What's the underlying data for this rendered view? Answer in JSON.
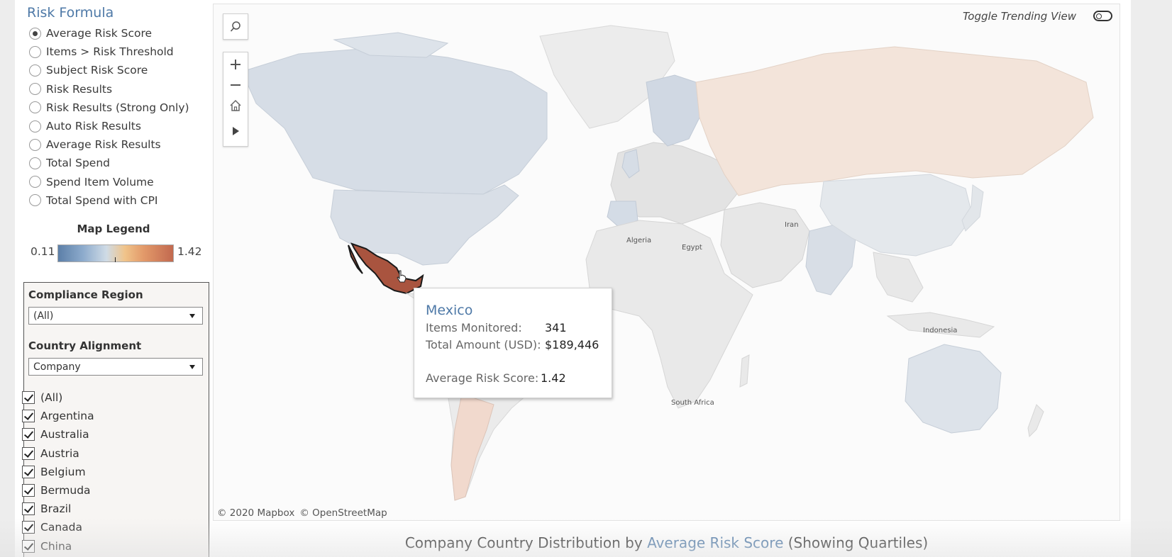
{
  "risk_formula": {
    "title": "Risk Formula",
    "selected": "Average Risk Score",
    "options": [
      {
        "label": "Average Risk Score",
        "checked": true
      },
      {
        "label": "Items > Risk Threshold",
        "checked": false
      },
      {
        "label": "Subject Risk Score",
        "checked": false
      },
      {
        "label": "Risk Results",
        "checked": false
      },
      {
        "label": "Risk Results (Strong Only)",
        "checked": false
      },
      {
        "label": "Auto Risk Results",
        "checked": false
      },
      {
        "label": "Average Risk Results",
        "checked": false
      },
      {
        "label": "Total Spend",
        "checked": false
      },
      {
        "label": "Spend Item Volume",
        "checked": false
      },
      {
        "label": "Total Spend with CPI",
        "checked": false
      }
    ]
  },
  "map_legend": {
    "title": "Map Legend",
    "min": "0.11",
    "max": "1.42",
    "colors": [
      "#5c7fa8",
      "#8eaccd",
      "#cfdbe6",
      "#f0c48a",
      "#e39a6a",
      "#c2694f"
    ]
  },
  "filters": {
    "compliance_region": {
      "label": "Compliance Region",
      "value": "(All)"
    },
    "country_alignment": {
      "label": "Country Alignment",
      "value": "Company"
    },
    "countries": [
      {
        "label": "(All)",
        "checked": true
      },
      {
        "label": "Argentina",
        "checked": true
      },
      {
        "label": "Australia",
        "checked": true
      },
      {
        "label": "Austria",
        "checked": true
      },
      {
        "label": "Belgium",
        "checked": true
      },
      {
        "label": "Bermuda",
        "checked": true
      },
      {
        "label": "Brazil",
        "checked": true
      },
      {
        "label": "Canada",
        "checked": true
      },
      {
        "label": "China",
        "checked": true
      }
    ]
  },
  "map": {
    "toggle_label": "Toggle Trending View",
    "copyright": [
      "© 2020 Mapbox",
      "© OpenStreetMap"
    ],
    "place_labels": [
      "Algeria",
      "Egypt",
      "Iran",
      "Indonesia",
      "South Africa"
    ],
    "controls": [
      "search-icon",
      "zoom-in-icon",
      "zoom-out-icon",
      "home-icon",
      "play-icon"
    ],
    "highlight_color": "#a9543f"
  },
  "tooltip": {
    "country": "Mexico",
    "items_label": "Items Monitored:",
    "items_value": "341",
    "amount_label": "Total Amount (USD):",
    "amount_value": "$189,446",
    "score_label": "Average Risk Score:",
    "score_value": "1.42"
  },
  "footer": {
    "prefix": "Company Country Distribution by ",
    "metric": "Average Risk Score",
    "suffix": " (Showing Quartiles)"
  }
}
